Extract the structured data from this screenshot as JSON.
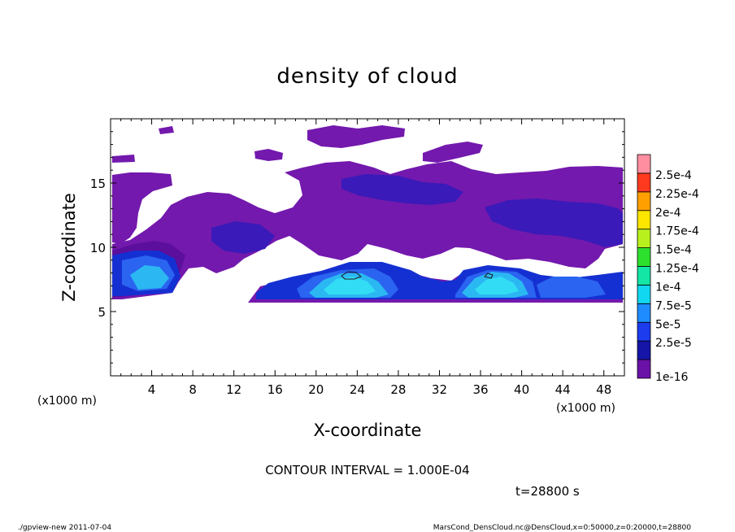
{
  "chart_data": {
    "type": "heatmap",
    "title": "density of cloud",
    "xlabel": "X-coordinate",
    "ylabel": "Z-coordinate",
    "x_unit_left": "(x1000 m)",
    "x_unit_right": "(x1000 m)",
    "xlim": [
      0,
      50
    ],
    "ylim": [
      0,
      20
    ],
    "x_ticks": [
      4,
      8,
      12,
      16,
      20,
      24,
      28,
      32,
      36,
      40,
      44,
      48
    ],
    "y_ticks": [
      5,
      10,
      15
    ],
    "colorbar": {
      "labels": [
        "1e-16",
        "2.5e-5",
        "5e-5",
        "7.5e-5",
        "1e-4",
        "1.25e-4",
        "1.5e-4",
        "1.75e-4",
        "2e-4",
        "2.25e-4",
        "2.5e-4"
      ],
      "colors": [
        "#6a12a8",
        "#1515a8",
        "#1c3cee",
        "#1e8cff",
        "#11d7f0",
        "#13e6a5",
        "#2ee02e",
        "#b8f01e",
        "#ffe600",
        "#ffa000",
        "#ff3a1e",
        "#ff8fa0"
      ]
    },
    "contour_interval_text": "CONTOUR INTERVAL = 1.000E-04",
    "time_text": "t=28800 s",
    "field_colors": {
      "dark_purple": "#5c0e9c",
      "purple": "#7319ad",
      "indigo": "#3a1ab8",
      "blue": "#1530d2",
      "mid_blue": "#2a64f0",
      "light_blue": "#2bb8f2",
      "cyan": "#32dcf5"
    }
  },
  "footer": {
    "left": "./gpview-new  2011-07-04",
    "right": "MarsCond_DensCloud.nc@DensCloud,x=0:50000,z=0:20000,t=28800"
  }
}
